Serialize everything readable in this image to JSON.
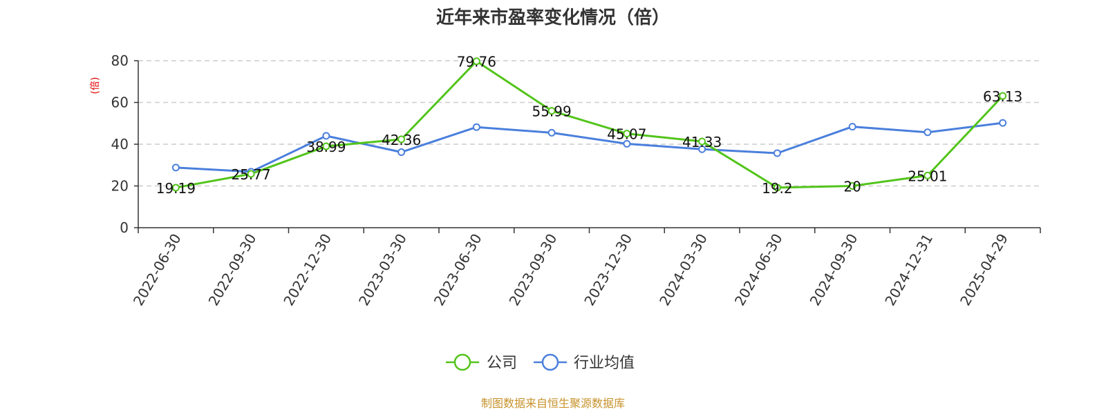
{
  "chart_data": {
    "type": "line",
    "title": "近年来市盈率变化情况（倍）",
    "xlabel": "",
    "ylabel": "(倍)",
    "categories": [
      "2022-06-30",
      "2022-09-30",
      "2022-12-30",
      "2023-03-30",
      "2023-06-30",
      "2023-09-30",
      "2023-12-30",
      "2024-03-30",
      "2024-06-30",
      "2024-09-30",
      "2024-12-31",
      "2025-04-29"
    ],
    "ylim": [
      0,
      80
    ],
    "yticks": [
      0,
      20,
      40,
      60,
      80
    ],
    "grid": "horizontal-dashed",
    "legend_position": "bottom-center",
    "series": [
      {
        "name": "公司",
        "color": "#52c41a",
        "values": [
          19.19,
          25.77,
          38.99,
          42.36,
          79.76,
          55.99,
          45.07,
          41.33,
          19.2,
          20,
          25.01,
          63.13
        ],
        "labels": [
          "19.19",
          "25.77",
          "38.99",
          "42.36",
          "79.76",
          "55.99",
          "45.07",
          "41.33",
          "19.2",
          "20",
          "25.01",
          "63.13"
        ]
      },
      {
        "name": "行业均值",
        "color": "#4a7fdc",
        "values": [
          28.8,
          26.8,
          44.0,
          36.2,
          48.2,
          45.5,
          40.2,
          37.6,
          35.7,
          48.4,
          45.7,
          50.2
        ]
      }
    ],
    "source_note": "制图数据来自恒生聚源数据库"
  }
}
